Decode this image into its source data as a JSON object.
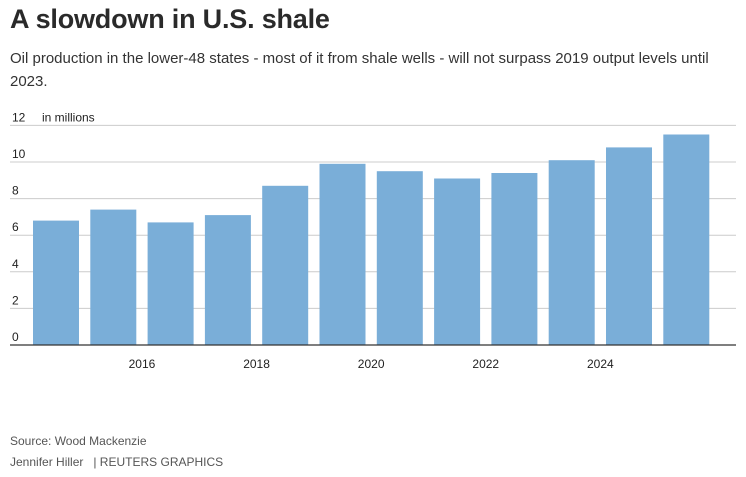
{
  "title": "A slowdown in U.S. shale",
  "subtitle": "Oil production in the lower-48 states - most of it from shale wells - will not surpass 2019 output levels until 2023.",
  "source": "Source: Wood Mackenzie",
  "credit": {
    "author": "Jennifer Hiller",
    "organization": "| REUTERS GRAPHICS"
  },
  "chart_data": {
    "type": "bar",
    "unit_label": "in millions",
    "x": [
      2014,
      2015,
      2016,
      2017,
      2018,
      2019,
      2020,
      2021,
      2022,
      2023,
      2024,
      2025
    ],
    "values": [
      6.8,
      7.4,
      6.7,
      7.1,
      8.7,
      9.9,
      9.5,
      9.1,
      9.4,
      10.1,
      10.8,
      11.5
    ],
    "x_ticks": [
      "2016",
      "2018",
      "2020",
      "2022",
      "2024"
    ],
    "x_tick_values": [
      2016,
      2018,
      2020,
      2022,
      2024
    ],
    "y_ticks": [
      "0",
      "2",
      "4",
      "6",
      "8",
      "10",
      "12"
    ],
    "y_tick_values": [
      0,
      2,
      4,
      6,
      8,
      10,
      12
    ],
    "ylim": [
      0,
      12
    ],
    "grid": true,
    "bar_color": "#7aaed8",
    "grid_color": "#cccccc",
    "axis_color": "#333333"
  }
}
